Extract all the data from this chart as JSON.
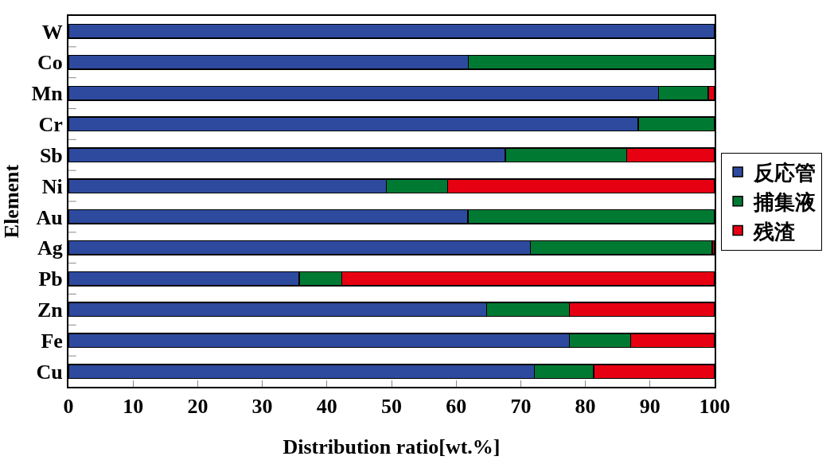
{
  "chart_data": {
    "type": "bar",
    "orientation": "horizontal",
    "stacked": true,
    "xlabel": "Distribution ratio[wt.%]",
    "ylabel": "Element",
    "categories": [
      "W",
      "Co",
      "Mn",
      "Cr",
      "Sb",
      "Ni",
      "Au",
      "Ag",
      "Pb",
      "Zn",
      "Fe",
      "Cu"
    ],
    "series": [
      {
        "name": "反応管",
        "color": "#2e4a9e",
        "values": [
          100,
          61.9,
          91.3,
          88.2,
          67.6,
          49.2,
          61.8,
          71.5,
          35.7,
          64.7,
          77.5,
          72.1
        ]
      },
      {
        "name": "捕集液",
        "color": "#007a33",
        "values": [
          null,
          38.1,
          7.7,
          11.8,
          18.8,
          9.5,
          38.2,
          28.1,
          6.6,
          12.8,
          9.5,
          9.2
        ]
      },
      {
        "name": "残渣",
        "color": "#e60012",
        "values": [
          null,
          null,
          1.0,
          null,
          13.6,
          41.3,
          null,
          0.4,
          57.7,
          22.5,
          13.0,
          18.7
        ]
      }
    ],
    "xlim": [
      0,
      100
    ],
    "xticks": [
      0,
      10,
      20,
      30,
      40,
      50,
      60,
      70,
      80,
      90,
      100
    ],
    "grid": false,
    "legend": "right"
  }
}
